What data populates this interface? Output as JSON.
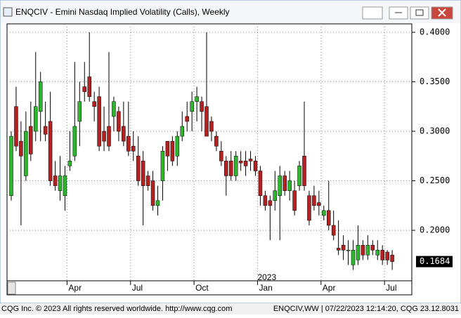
{
  "window": {
    "title": "ENQCIV - Emini Nasdaq Implied Volatility (Calls), Weekly"
  },
  "chart_data": {
    "type": "candlestick",
    "categories": [
      null,
      null,
      null,
      null,
      null,
      null,
      null,
      null,
      null,
      null,
      null,
      null,
      "Apr",
      null,
      null,
      null,
      null,
      null,
      null,
      null,
      null,
      null,
      null,
      null,
      null,
      "Jul",
      null,
      null,
      null,
      null,
      null,
      null,
      null,
      null,
      null,
      null,
      null,
      null,
      "Oct",
      null,
      null,
      null,
      null,
      null,
      null,
      null,
      null,
      null,
      null,
      null,
      null,
      "Jan",
      null,
      null,
      null,
      null,
      null,
      null,
      null,
      null,
      null,
      null,
      null,
      null,
      "Apr",
      null,
      null,
      null,
      null,
      null,
      null,
      null,
      null,
      null,
      null,
      null,
      null,
      "Jul",
      null
    ],
    "annotation": "2023",
    "series": {
      "open": [
        0.235,
        0.325,
        0.29,
        0.255,
        0.305,
        0.3,
        0.32,
        0.305,
        0.31,
        0.255,
        0.24,
        0.235,
        0.265,
        0.275,
        0.31,
        0.345,
        0.355,
        0.33,
        0.335,
        0.3,
        0.305,
        0.315,
        0.32,
        0.305,
        0.295,
        0.285,
        0.275,
        0.27,
        0.255,
        0.25,
        0.225,
        0.25,
        0.29,
        0.29,
        0.275,
        0.295,
        0.315,
        0.32,
        0.33,
        0.33,
        0.325,
        0.31,
        0.295,
        0.28,
        0.27,
        0.27,
        0.255,
        0.27,
        0.27,
        0.272,
        0.27,
        0.26,
        0.235,
        0.23,
        0.23,
        0.235,
        0.255,
        0.24,
        0.24,
        0.245,
        0.275,
        0.235,
        0.235,
        0.228,
        0.215,
        0.22,
        0.205,
        0.182,
        0.185,
        0.18,
        0.165,
        0.17,
        0.185,
        0.175,
        0.185,
        0.175,
        0.18,
        0.178,
        0.175
      ],
      "high": [
        0.3,
        0.345,
        0.31,
        0.32,
        0.33,
        0.38,
        0.36,
        0.33,
        0.34,
        0.27,
        0.275,
        0.265,
        0.3,
        0.37,
        0.35,
        0.37,
        0.4,
        0.34,
        0.345,
        0.325,
        0.38,
        0.335,
        0.325,
        0.33,
        0.33,
        0.3,
        0.295,
        0.28,
        0.26,
        0.26,
        0.245,
        0.285,
        0.29,
        0.295,
        0.3,
        0.32,
        0.33,
        0.34,
        0.345,
        0.335,
        0.4,
        0.315,
        0.3,
        0.29,
        0.275,
        0.28,
        0.28,
        0.28,
        0.28,
        0.28,
        0.275,
        0.265,
        0.24,
        0.235,
        0.26,
        0.265,
        0.26,
        0.26,
        0.25,
        0.27,
        0.33,
        0.24,
        0.245,
        0.24,
        0.225,
        0.25,
        0.22,
        0.21,
        0.195,
        0.19,
        0.19,
        0.205,
        0.19,
        0.195,
        0.19,
        0.19,
        0.185,
        0.18,
        0.18
      ],
      "low": [
        0.23,
        0.28,
        0.205,
        0.25,
        0.27,
        0.29,
        0.29,
        0.29,
        0.245,
        0.24,
        0.23,
        0.22,
        0.26,
        0.27,
        0.285,
        0.33,
        0.33,
        0.31,
        0.28,
        0.28,
        0.28,
        0.3,
        0.29,
        0.285,
        0.275,
        0.27,
        0.245,
        0.205,
        0.24,
        0.22,
        0.215,
        0.23,
        0.26,
        0.265,
        0.265,
        0.29,
        0.3,
        0.3,
        0.31,
        0.3,
        0.295,
        0.29,
        0.28,
        0.265,
        0.235,
        0.25,
        0.25,
        0.26,
        0.255,
        0.26,
        0.255,
        0.225,
        0.22,
        0.19,
        0.22,
        0.19,
        0.235,
        0.23,
        0.215,
        0.24,
        0.24,
        0.205,
        0.22,
        0.215,
        0.21,
        0.2,
        0.19,
        0.175,
        0.17,
        0.165,
        0.16,
        0.165,
        0.17,
        0.17,
        0.175,
        0.17,
        0.165,
        0.165,
        0.16
      ],
      "close": [
        0.295,
        0.285,
        0.275,
        0.3,
        0.277,
        0.325,
        0.35,
        0.297,
        0.25,
        0.245,
        0.255,
        0.255,
        0.27,
        0.305,
        0.33,
        0.34,
        0.335,
        0.325,
        0.285,
        0.29,
        0.285,
        0.33,
        0.3,
        0.29,
        0.28,
        0.28,
        0.25,
        0.245,
        0.245,
        0.225,
        0.23,
        0.28,
        0.275,
        0.27,
        0.295,
        0.305,
        0.31,
        0.33,
        0.335,
        0.32,
        0.295,
        0.3,
        0.285,
        0.27,
        0.255,
        0.255,
        0.275,
        0.268,
        0.265,
        0.27,
        0.26,
        0.235,
        0.225,
        0.225,
        0.24,
        0.255,
        0.24,
        0.25,
        0.22,
        0.265,
        0.245,
        0.21,
        0.225,
        0.225,
        0.22,
        0.205,
        0.195,
        0.18,
        0.18,
        0.18,
        0.18,
        0.185,
        0.175,
        0.185,
        0.18,
        0.18,
        0.17,
        0.17,
        0.1684
      ]
    },
    "up_color": "#2db52d",
    "down_color": "#b22222",
    "ylim": [
      0.149,
      0.4085
    ],
    "yticks": [
      {
        "value": 0.2,
        "label": "0.2000"
      },
      {
        "value": 0.25,
        "label": "0.2500"
      },
      {
        "value": 0.3,
        "label": "0.3000"
      },
      {
        "value": 0.35,
        "label": "0.3500"
      },
      {
        "value": 0.4,
        "label": "0.4000"
      }
    ],
    "grid": true
  },
  "footer": {
    "left": "CQG Inc. © 2023 All rights reserved worldwide. http://www.cqg.com",
    "right": "ENQCIV,WW | 07/22/2023 12:14:20, CQG 23.12.8031"
  }
}
